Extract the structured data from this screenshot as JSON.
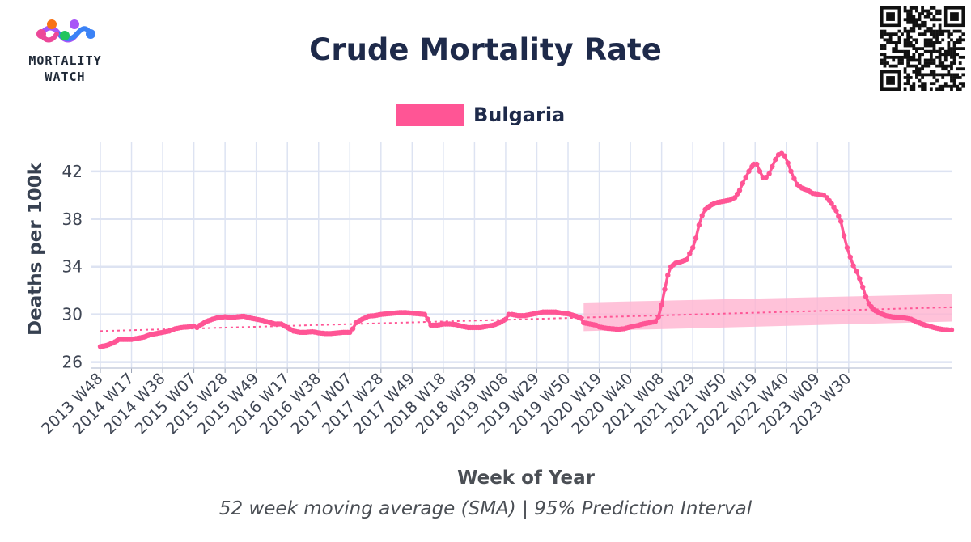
{
  "header": {
    "logo_line1": "MORTALITY",
    "logo_line2": "WATCH",
    "title": "Crude Mortality Rate"
  },
  "colors": {
    "series": "#ff5595",
    "band": "#ffb3cf",
    "grid": "#dde3f2",
    "text": "#1e2a4a"
  },
  "footer": {
    "caption": "52 week moving average (SMA) | 95% Prediction Interval"
  },
  "chart_data": {
    "type": "line",
    "title": "Crude Mortality Rate",
    "xlabel": "Week of Year",
    "ylabel": "Deaths per 100k",
    "ylim": [
      25.5,
      44.5
    ],
    "yticks": [
      26,
      30,
      34,
      38,
      42
    ],
    "xticks": [
      "2013 W48",
      "2014 W17",
      "2014 W38",
      "2015 W07",
      "2015 W28",
      "2015 W49",
      "2016 W17",
      "2016 W38",
      "2017 W07",
      "2017 W28",
      "2017 W49",
      "2018 W18",
      "2018 W39",
      "2019 W08",
      "2019 W29",
      "2019 W50",
      "2020 W19",
      "2020 W40",
      "2021 W08",
      "2021 W29",
      "2021 W50",
      "2022 W19",
      "2022 W40",
      "2023 W09",
      "2023 W30"
    ],
    "grid": true,
    "legend_position": "top-center",
    "series": [
      {
        "name": "Bulgaria",
        "style": "line-with-markers",
        "points": [
          [
            0,
            27.3
          ],
          [
            0.2,
            27.4
          ],
          [
            0.4,
            27.6
          ],
          [
            0.6,
            27.9
          ],
          [
            0.8,
            27.9
          ],
          [
            1,
            27.9
          ],
          [
            1.2,
            28
          ],
          [
            1.4,
            28.1
          ],
          [
            1.6,
            28.3
          ],
          [
            1.8,
            28.4
          ],
          [
            2,
            28.5
          ],
          [
            2.2,
            28.6
          ],
          [
            2.4,
            28.8
          ],
          [
            2.6,
            28.9
          ],
          [
            2.8,
            28.95
          ],
          [
            3,
            29
          ],
          [
            3.1,
            28.9
          ],
          [
            3.2,
            29.1
          ],
          [
            3.4,
            29.4
          ],
          [
            3.6,
            29.6
          ],
          [
            3.8,
            29.75
          ],
          [
            4,
            29.8
          ],
          [
            4.2,
            29.75
          ],
          [
            4.4,
            29.8
          ],
          [
            4.6,
            29.85
          ],
          [
            4.8,
            29.7
          ],
          [
            5,
            29.6
          ],
          [
            5.2,
            29.5
          ],
          [
            5.4,
            29.35
          ],
          [
            5.6,
            29.2
          ],
          [
            5.8,
            29.2
          ],
          [
            6,
            28.9
          ],
          [
            6.2,
            28.6
          ],
          [
            6.4,
            28.5
          ],
          [
            6.6,
            28.5
          ],
          [
            6.8,
            28.55
          ],
          [
            7,
            28.45
          ],
          [
            7.2,
            28.4
          ],
          [
            7.4,
            28.4
          ],
          [
            7.6,
            28.45
          ],
          [
            7.8,
            28.5
          ],
          [
            8,
            28.5
          ],
          [
            8.1,
            28.8
          ],
          [
            8.2,
            29.3
          ],
          [
            8.4,
            29.6
          ],
          [
            8.6,
            29.85
          ],
          [
            8.8,
            29.9
          ],
          [
            9,
            30
          ],
          [
            9.2,
            30.05
          ],
          [
            9.4,
            30.1
          ],
          [
            9.6,
            30.15
          ],
          [
            9.8,
            30.15
          ],
          [
            10,
            30.1
          ],
          [
            10.2,
            30.05
          ],
          [
            10.4,
            30.0
          ],
          [
            10.5,
            29.6
          ],
          [
            10.6,
            29.1
          ],
          [
            10.8,
            29.1
          ],
          [
            11,
            29.2
          ],
          [
            11.2,
            29.2
          ],
          [
            11.4,
            29.15
          ],
          [
            11.6,
            29.0
          ],
          [
            11.8,
            28.9
          ],
          [
            12,
            28.9
          ],
          [
            12.2,
            28.9
          ],
          [
            12.4,
            29.0
          ],
          [
            12.6,
            29.1
          ],
          [
            12.8,
            29.3
          ],
          [
            13,
            29.6
          ],
          [
            13.1,
            30.0
          ],
          [
            13.2,
            30.0
          ],
          [
            13.4,
            29.9
          ],
          [
            13.6,
            29.9
          ],
          [
            13.8,
            30.0
          ],
          [
            14,
            30.1
          ],
          [
            14.2,
            30.2
          ],
          [
            14.4,
            30.2
          ],
          [
            14.6,
            30.2
          ],
          [
            14.8,
            30.1
          ],
          [
            15,
            30.05
          ],
          [
            15.2,
            29.9
          ],
          [
            15.4,
            29.7
          ],
          [
            15.5,
            29.3
          ],
          [
            15.7,
            29.2
          ],
          [
            15.9,
            29.1
          ],
          [
            16,
            28.95
          ],
          [
            16.2,
            28.85
          ],
          [
            16.4,
            28.8
          ],
          [
            16.6,
            28.75
          ],
          [
            16.8,
            28.8
          ],
          [
            17,
            28.95
          ],
          [
            17.2,
            29.05
          ],
          [
            17.4,
            29.2
          ],
          [
            17.6,
            29.3
          ],
          [
            17.8,
            29.4
          ],
          [
            17.9,
            29.8
          ],
          [
            18,
            30.8
          ],
          [
            18.1,
            32.1
          ],
          [
            18.2,
            33.3
          ],
          [
            18.3,
            34.0
          ],
          [
            18.45,
            34.3
          ],
          [
            18.6,
            34.4
          ],
          [
            18.8,
            34.6
          ],
          [
            18.9,
            35.1
          ],
          [
            19,
            35.6
          ],
          [
            19.1,
            36.4
          ],
          [
            19.2,
            37.5
          ],
          [
            19.3,
            38.3
          ],
          [
            19.4,
            38.8
          ],
          [
            19.6,
            39.2
          ],
          [
            19.8,
            39.4
          ],
          [
            20,
            39.5
          ],
          [
            20.2,
            39.6
          ],
          [
            20.35,
            39.8
          ],
          [
            20.5,
            40.4
          ],
          [
            20.6,
            41.0
          ],
          [
            20.7,
            41.5
          ],
          [
            20.8,
            42.0
          ],
          [
            20.9,
            42.4
          ],
          [
            20.95,
            42.6
          ],
          [
            21.05,
            42.6
          ],
          [
            21.15,
            42.0
          ],
          [
            21.25,
            41.5
          ],
          [
            21.35,
            41.5
          ],
          [
            21.45,
            41.8
          ],
          [
            21.55,
            42.4
          ],
          [
            21.65,
            43.0
          ],
          [
            21.75,
            43.4
          ],
          [
            21.85,
            43.5
          ],
          [
            21.95,
            43.3
          ],
          [
            22.05,
            42.7
          ],
          [
            22.15,
            42.0
          ],
          [
            22.25,
            41.4
          ],
          [
            22.35,
            40.9
          ],
          [
            22.5,
            40.6
          ],
          [
            22.7,
            40.4
          ],
          [
            22.85,
            40.15
          ],
          [
            23,
            40.1
          ],
          [
            23.2,
            40.0
          ],
          [
            23.3,
            39.8
          ],
          [
            23.45,
            39.3
          ],
          [
            23.6,
            38.7
          ],
          [
            23.75,
            37.8
          ],
          [
            23.85,
            36.6
          ],
          [
            23.95,
            35.6
          ],
          [
            24.05,
            34.8
          ],
          [
            24.15,
            34.1
          ],
          [
            24.25,
            33.6
          ],
          [
            24.35,
            33.0
          ],
          [
            24.45,
            32.3
          ],
          [
            24.55,
            31.5
          ],
          [
            24.65,
            30.9
          ],
          [
            24.8,
            30.4
          ],
          [
            25,
            30.1
          ],
          [
            25.2,
            29.9
          ],
          [
            25.4,
            29.8
          ],
          [
            25.6,
            29.75
          ],
          [
            25.8,
            29.7
          ],
          [
            26,
            29.6
          ],
          [
            26.2,
            29.35
          ],
          [
            26.4,
            29.15
          ],
          [
            26.6,
            29.0
          ],
          [
            26.8,
            28.85
          ],
          [
            27,
            28.75
          ],
          [
            27.2,
            28.7
          ],
          [
            27.3,
            28.7
          ]
        ]
      },
      {
        "name": "",
        "style": "dotted-trend",
        "points": [
          [
            0,
            28.6
          ],
          [
            27.3,
            30.6
          ]
        ]
      }
    ],
    "prediction_interval": {
      "x": [
        15.5,
        27.3
      ],
      "lower": [
        28.6,
        29.4
      ],
      "upper": [
        31.0,
        31.7
      ]
    }
  }
}
